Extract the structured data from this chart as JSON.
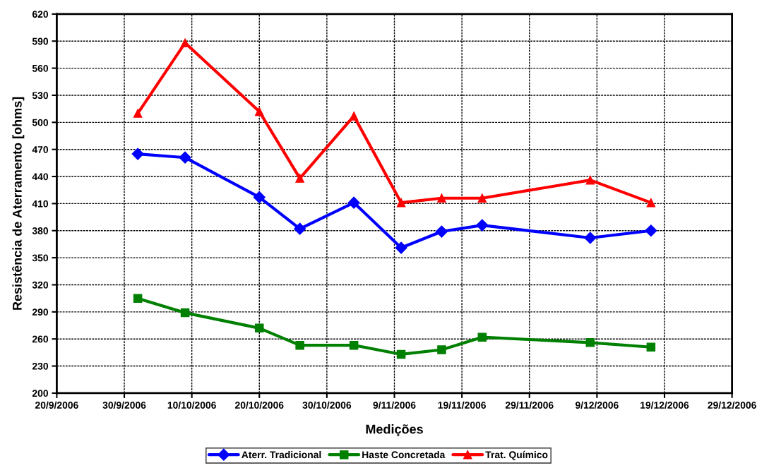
{
  "chart_data": {
    "type": "line",
    "xlabel": "Medições",
    "ylabel": "Resistência de Aterramento [ohms]",
    "x": [
      "2006-10-02",
      "2006-10-09",
      "2006-10-20",
      "2006-10-26",
      "2006-11-03",
      "2006-11-10",
      "2006-11-16",
      "2006-11-22",
      "2006-12-08",
      "2006-12-17"
    ],
    "series": [
      {
        "name": "Aterr. Tradicional",
        "color": "#0000ff",
        "marker": "diamond",
        "values": [
          465,
          461,
          417,
          382,
          411,
          361,
          379,
          386,
          372,
          380
        ]
      },
      {
        "name": "Haste Concretada",
        "color": "#008000",
        "marker": "square",
        "values": [
          305,
          289,
          272,
          253,
          253,
          243,
          248,
          262,
          256,
          251
        ]
      },
      {
        "name": "Trat. Químico",
        "color": "#ff0000",
        "marker": "triangle",
        "values": [
          510,
          588,
          512,
          438,
          507,
          411,
          416,
          416,
          436,
          411
        ]
      }
    ],
    "xlim": [
      "2006-09-20",
      "2006-12-29"
    ],
    "xticks": [
      {
        "value": "2006-09-20",
        "label": "20/9/2006"
      },
      {
        "value": "2006-09-30",
        "label": "30/9/2006"
      },
      {
        "value": "2006-10-10",
        "label": "10/10/2006"
      },
      {
        "value": "2006-10-20",
        "label": "20/10/2006"
      },
      {
        "value": "2006-10-30",
        "label": "30/10/2006"
      },
      {
        "value": "2006-11-09",
        "label": "9/11/2006"
      },
      {
        "value": "2006-11-19",
        "label": "19/11/2006"
      },
      {
        "value": "2006-11-29",
        "label": "29/11/2006"
      },
      {
        "value": "2006-12-09",
        "label": "9/12/2006"
      },
      {
        "value": "2006-12-19",
        "label": "19/12/2006"
      },
      {
        "value": "2006-12-29",
        "label": "29/12/2006"
      }
    ],
    "ylim": [
      200,
      620
    ],
    "yticks": [
      200,
      230,
      260,
      290,
      320,
      350,
      380,
      410,
      440,
      470,
      500,
      530,
      560,
      590,
      620
    ],
    "grid": true,
    "legend": "bottom",
    "line_style": "solid"
  }
}
